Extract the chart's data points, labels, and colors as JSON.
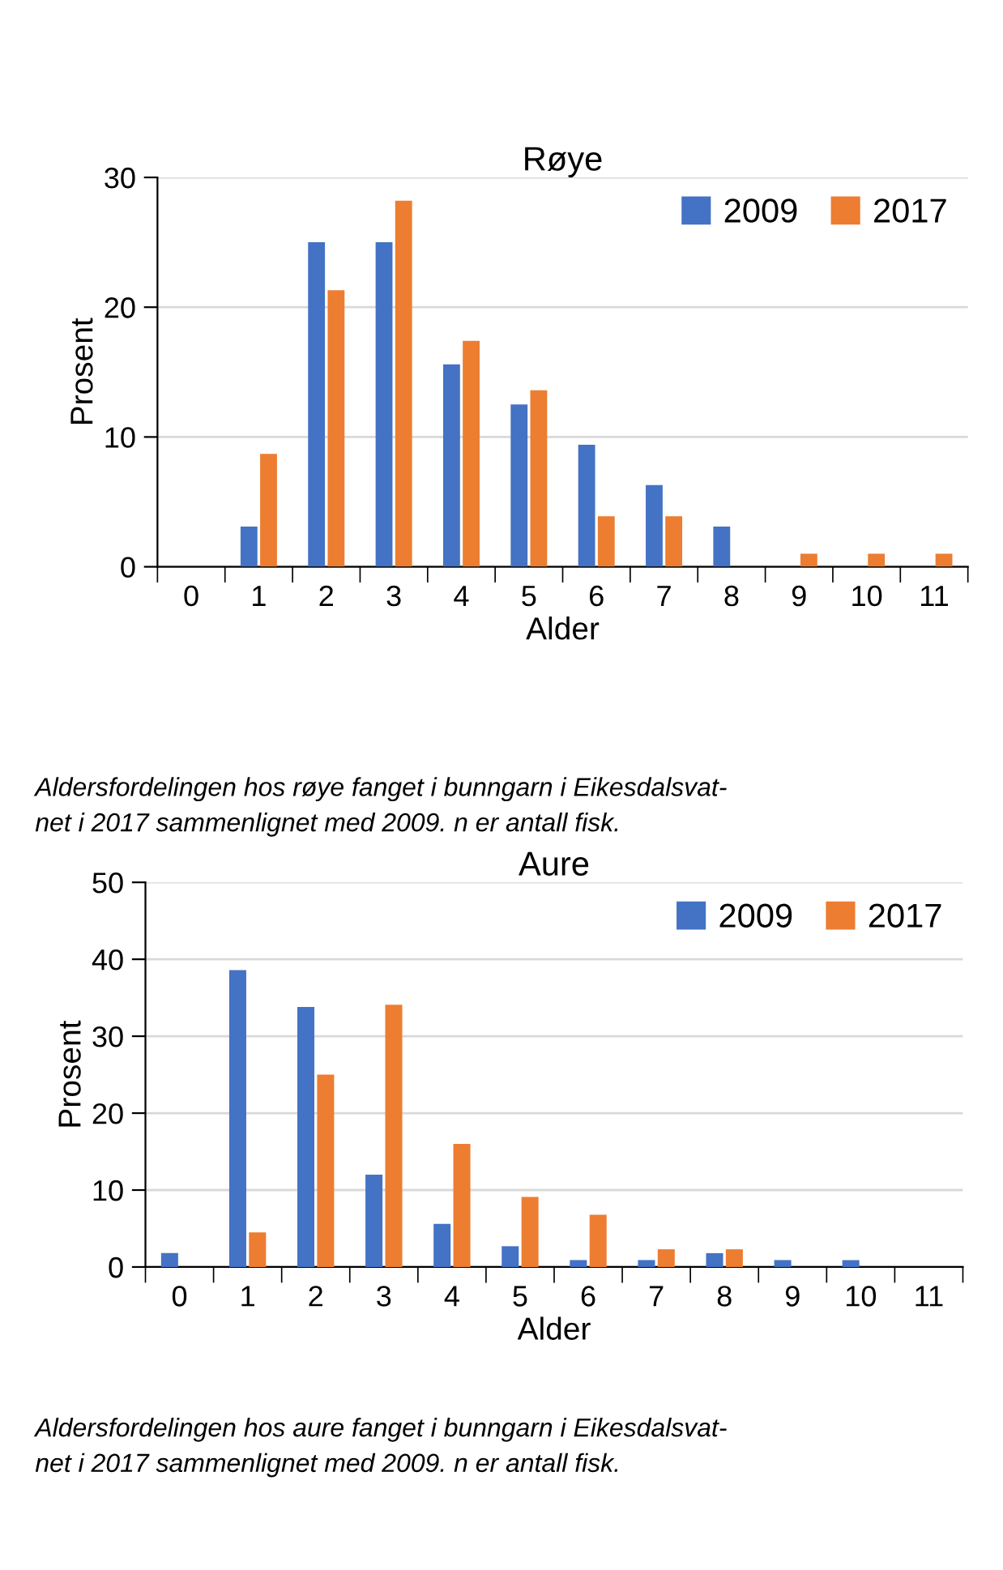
{
  "chart_data": [
    {
      "type": "bar",
      "title": "Røye",
      "xlabel": "Alder",
      "ylabel": "Prosent",
      "categories": [
        "0",
        "1",
        "2",
        "3",
        "4",
        "5",
        "6",
        "7",
        "8",
        "9",
        "10",
        "11"
      ],
      "series": [
        {
          "name": "2009",
          "color": "#4472c4",
          "values": [
            0,
            3.1,
            25,
            25,
            15.6,
            12.5,
            9.4,
            6.3,
            3.1,
            0,
            0,
            0
          ]
        },
        {
          "name": "2017",
          "color": "#ed7d31",
          "values": [
            0,
            8.7,
            21.3,
            28.2,
            17.4,
            13.6,
            3.9,
            3.9,
            0,
            1,
            1,
            1
          ]
        }
      ],
      "ylim": [
        0,
        30
      ],
      "yticks": [
        0,
        10,
        20,
        30
      ],
      "grid": "y",
      "legend": "top right",
      "annotations": [
        "Aldersfordelingen hos røye fanget i bunngarn i Eikesdalsvat-\nnet i 2017 sammenlignet med 2009. n er antall fisk."
      ]
    },
    {
      "type": "bar",
      "title": "Aure",
      "xlabel": "Alder",
      "ylabel": "Prosent",
      "categories": [
        "0",
        "1",
        "2",
        "3",
        "4",
        "5",
        "6",
        "7",
        "8",
        "9",
        "10",
        "11"
      ],
      "series": [
        {
          "name": "2009",
          "color": "#4472c4",
          "values": [
            1.8,
            38.6,
            33.8,
            12,
            5.6,
            2.7,
            0.9,
            0.9,
            1.8,
            0.9,
            0.9,
            0
          ]
        },
        {
          "name": "2017",
          "color": "#ed7d31",
          "values": [
            0,
            4.5,
            25,
            34.1,
            16,
            9.1,
            6.8,
            2.3,
            2.3,
            0,
            0,
            0
          ]
        }
      ],
      "ylim": [
        0,
        50
      ],
      "yticks": [
        0,
        10,
        20,
        30,
        40,
        50
      ],
      "grid": "y",
      "legend": "top right",
      "annotations": [
        "Aldersfordelingen hos aure fanget i bunngarn i Eikesdalsvat-\nnet i 2017 sammenlignet med 2009. n er antall fisk."
      ]
    }
  ]
}
